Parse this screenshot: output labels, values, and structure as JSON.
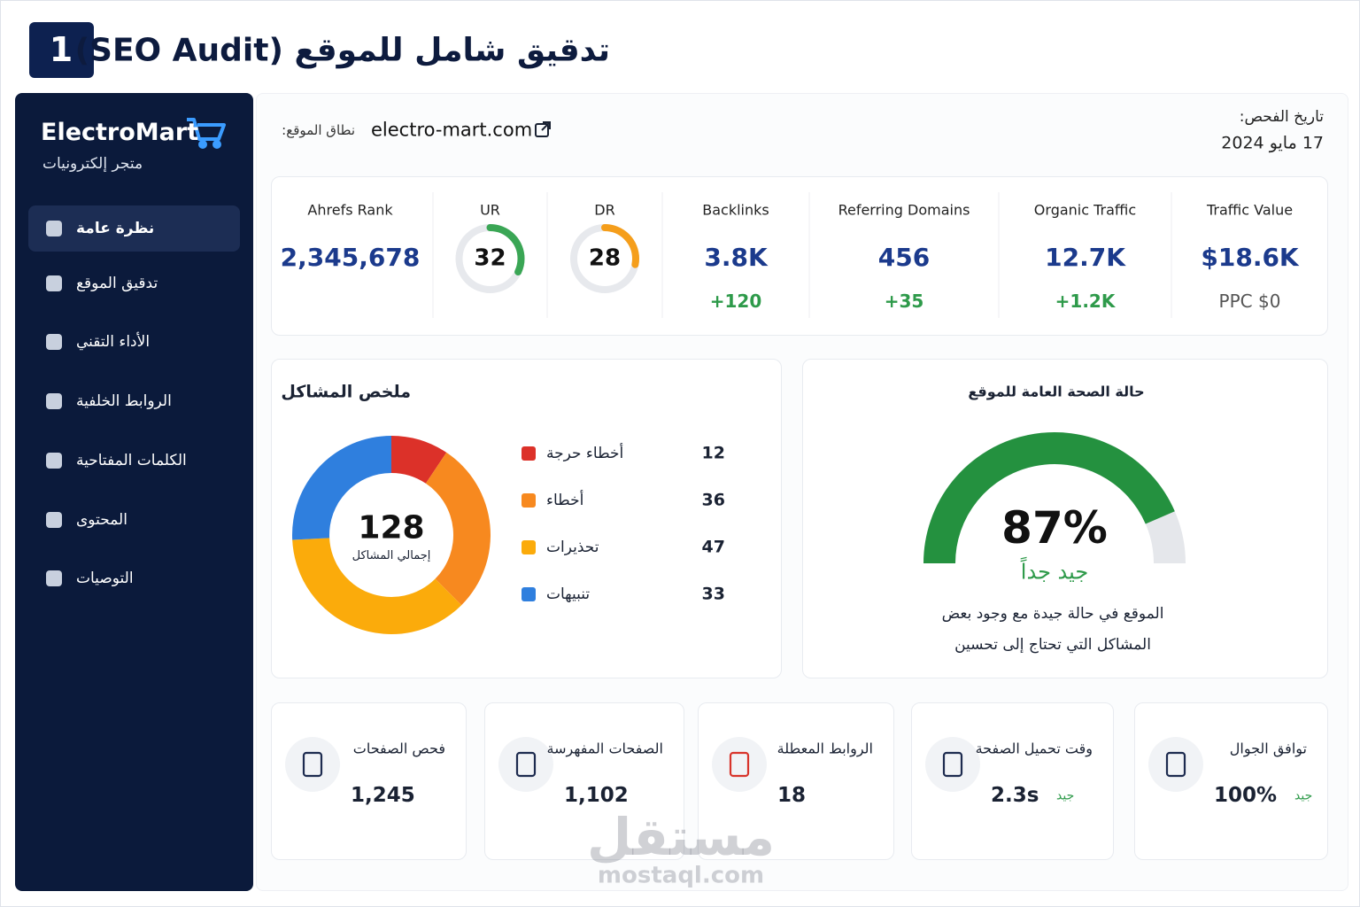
{
  "header": {
    "badge": "1",
    "title": "تدقيق شامل للموقع (SEO Audit)"
  },
  "sidebar": {
    "brand": "ElectroMart",
    "tagline": "متجر إلكترونيات",
    "nav": [
      "نظرة عامة",
      "تدقيق الموقع",
      "الأداء التقني",
      "الروابط الخلفية",
      "الكلمات المفتاحية",
      "المحتوى",
      "التوصيات"
    ]
  },
  "site": {
    "domain_label": "نطاق الموقع:",
    "domain": "electro-mart.com",
    "date_label": "تاريخ الفحص:",
    "date": "17 مايو 2024"
  },
  "metrics": [
    {
      "label": "Ahrefs Rank",
      "value": "2,345,678"
    },
    {
      "label": "UR",
      "value": 32,
      "color": "#3aa655"
    },
    {
      "label": "DR",
      "value": 28,
      "color": "#f59e1b"
    },
    {
      "label": "Backlinks",
      "value": "3.8K",
      "note": "+120"
    },
    {
      "label": "Referring Domains",
      "value": 456,
      "note": "+35"
    },
    {
      "label": "Organic Traffic",
      "value": "12.7K",
      "note": "+1.2K"
    },
    {
      "label": "Traffic Value",
      "value": "$18.6K",
      "note": "PPC $0"
    }
  ],
  "issues": {
    "title": "ملخص المشاكل",
    "total": 128,
    "total_label": "إجمالي المشاكل",
    "segments": [
      {
        "name": "أخطاء حرجة",
        "value": 12,
        "color": "#dc3129"
      },
      {
        "name": "أخطاء",
        "value": 36,
        "color": "#f7891f"
      },
      {
        "name": "تحذيرات",
        "value": 47,
        "color": "#fbab0b"
      },
      {
        "name": "تنبيهات",
        "value": 33,
        "color": "#2f7fde"
      }
    ]
  },
  "health": {
    "title": "حالة الصحة العامة للموقع",
    "value": 87,
    "value_label": "87%",
    "rating": "جيد جداً",
    "description": "الموقع في حالة جيدة مع وجود بعض المشاكل التي تحتاج إلى تحسين"
  },
  "stats": [
    {
      "label": "فحص الصفحات",
      "value": "1,245"
    },
    {
      "label": "الصفحات المفهرسة",
      "value": "1,102"
    },
    {
      "label": "الروابط المعطلة",
      "value": 18
    },
    {
      "label": "وقت تحميل الصفحة",
      "value": "2.3s",
      "status": "جيد"
    },
    {
      "label": "توافق الجوال",
      "value": "100%",
      "status": "جيد"
    }
  ],
  "watermark": {
    "logo": "مستقل",
    "url": "mostaql.com"
  }
}
